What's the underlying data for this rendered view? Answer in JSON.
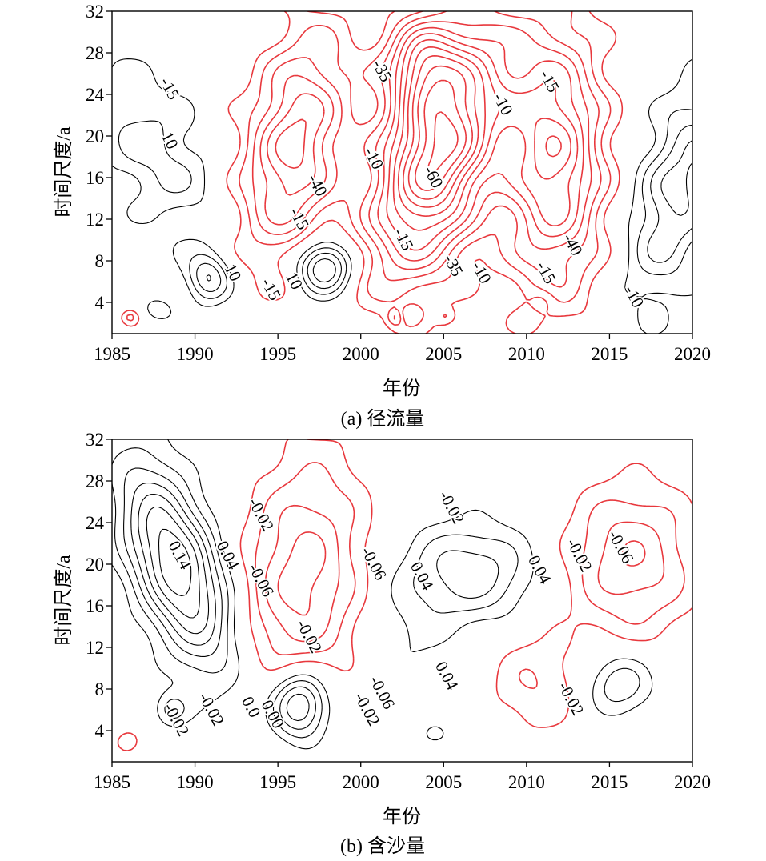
{
  "chart_data": [
    {
      "type": "contour",
      "caption": "(a) 径流量",
      "xlabel": "年份",
      "ylabel": "时间尺度/a",
      "xlim": [
        1985,
        2020
      ],
      "ylim": [
        1,
        32
      ],
      "xticks": [
        1985,
        1990,
        1995,
        2000,
        2005,
        2010,
        2015,
        2020
      ],
      "yticks": [
        4,
        8,
        12,
        16,
        20,
        24,
        28,
        32
      ],
      "series": [
        {
          "style": "solid",
          "color": "#000000",
          "meaning": "positive"
        },
        {
          "style": "dashed",
          "color": "#e8383d",
          "meaning": "negative"
        }
      ],
      "contour_labels": [
        {
          "text": "-15",
          "x": 1988.4,
          "y": 24.5
        },
        {
          "text": "10",
          "x": 1988.4,
          "y": 19.5
        },
        {
          "text": "-40",
          "x": 1997.3,
          "y": 15.2
        },
        {
          "text": "-15",
          "x": 1996.2,
          "y": 12.0
        },
        {
          "text": "10",
          "x": 1992.2,
          "y": 6.8
        },
        {
          "text": "-15",
          "x": 1994.5,
          "y": 5.2
        },
        {
          "text": "10",
          "x": 1995.9,
          "y": 6.0
        },
        {
          "text": "-35",
          "x": 2001.2,
          "y": 26.2
        },
        {
          "text": "-10",
          "x": 2000.7,
          "y": 17.8
        },
        {
          "text": "-60",
          "x": 2004.3,
          "y": 16.0
        },
        {
          "text": "-15",
          "x": 2002.5,
          "y": 10.0
        },
        {
          "text": "-35",
          "x": 2005.5,
          "y": 7.5
        },
        {
          "text": "-10",
          "x": 2007.2,
          "y": 6.8
        },
        {
          "text": "-10",
          "x": 2008.5,
          "y": 23.0
        },
        {
          "text": "-15",
          "x": 2011.3,
          "y": 25.2
        },
        {
          "text": "-40",
          "x": 2012.7,
          "y": 9.5
        },
        {
          "text": "-15",
          "x": 2011.1,
          "y": 6.8
        },
        {
          "text": "-10",
          "x": 2016.4,
          "y": 4.5
        }
      ]
    },
    {
      "type": "contour",
      "caption": "(b) 含沙量",
      "xlabel": "年份",
      "ylabel": "时间尺度/a",
      "xlim": [
        1985,
        2020
      ],
      "ylim": [
        1,
        32
      ],
      "xticks": [
        1985,
        1990,
        1995,
        2000,
        2005,
        2010,
        2015,
        2020
      ],
      "yticks": [
        4,
        8,
        12,
        16,
        20,
        24,
        28,
        32
      ],
      "series": [
        {
          "style": "solid",
          "color": "#000000",
          "meaning": "positive"
        },
        {
          "style": "dashed",
          "color": "#e8383d",
          "meaning": "negative"
        }
      ],
      "contour_labels": [
        {
          "text": "0.14",
          "x": 1989.0,
          "y": 20.8
        },
        {
          "text": "0.04",
          "x": 1991.9,
          "y": 20.8
        },
        {
          "text": "-0.02",
          "x": 1993.9,
          "y": 24.7
        },
        {
          "text": "-0.06",
          "x": 1993.9,
          "y": 18.4
        },
        {
          "text": "-0.06",
          "x": 2000.7,
          "y": 20.0
        },
        {
          "text": "-0.02",
          "x": 2005.4,
          "y": 25.4
        },
        {
          "text": "0.04",
          "x": 2003.6,
          "y": 18.8
        },
        {
          "text": "0.04",
          "x": 2010.7,
          "y": 19.4
        },
        {
          "text": "-0.02",
          "x": 2013.1,
          "y": 20.8
        },
        {
          "text": "-0.06",
          "x": 2015.6,
          "y": 21.6
        },
        {
          "text": "-0.02",
          "x": 1996.8,
          "y": 13.0
        },
        {
          "text": "0.04",
          "x": 2005.1,
          "y": 9.2
        },
        {
          "text": "-0.02",
          "x": 1988.8,
          "y": 5.0
        },
        {
          "text": "-0.02",
          "x": 1990.9,
          "y": 6.0
        },
        {
          "text": "0.0",
          "x": 1993.3,
          "y": 6.2
        },
        {
          "text": "0.00",
          "x": 1994.6,
          "y": 5.5
        },
        {
          "text": "-0.02",
          "x": 2000.3,
          "y": 6.0
        },
        {
          "text": "-0.06",
          "x": 2001.2,
          "y": 7.6
        },
        {
          "text": "-0.02",
          "x": 2012.6,
          "y": 7.0
        }
      ]
    }
  ]
}
